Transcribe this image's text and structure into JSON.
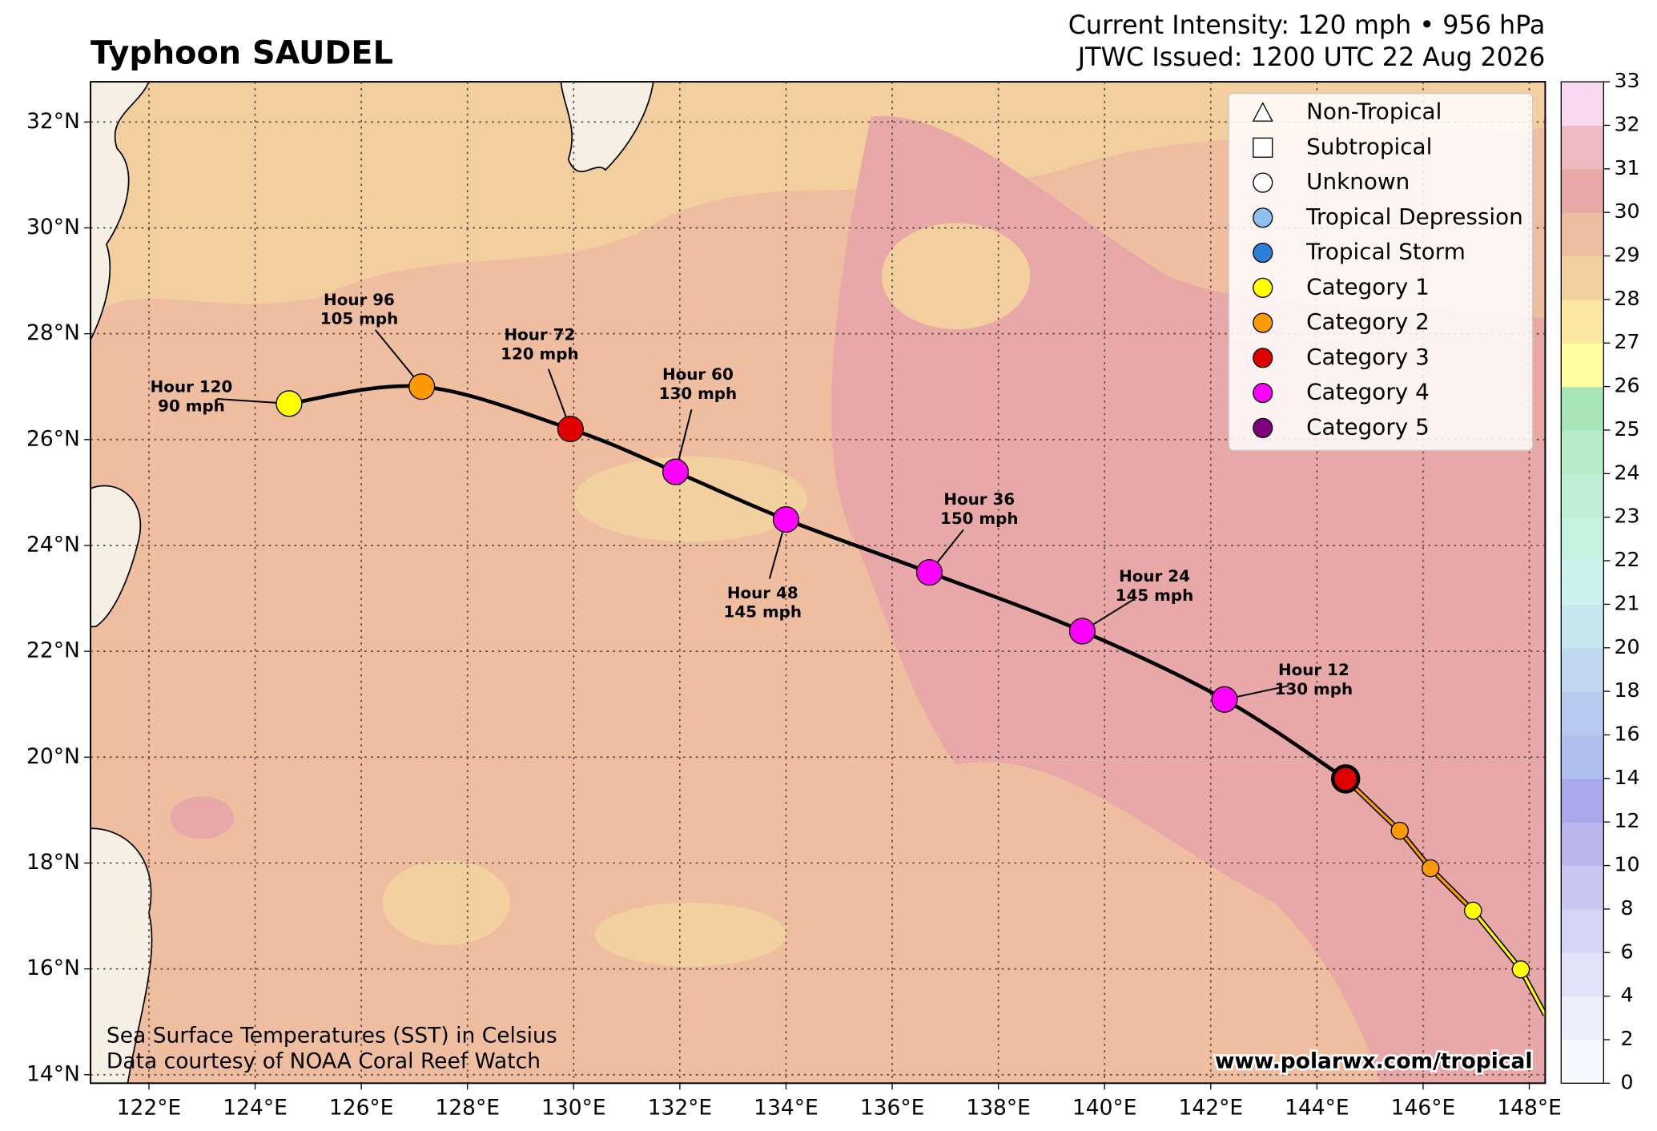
{
  "header": {
    "title": "Typhoon SAUDEL",
    "intensity": "Current Intensity: 120 mph • 956 hPa",
    "issued": "JTWC Issued: 1200 UTC 22 Aug 2026"
  },
  "map": {
    "lon_range": [
      120.9,
      148.3
    ],
    "lat_range": [
      13.84,
      32.76
    ],
    "lon_ticks": [
      {
        "value": 122,
        "label": "122°E"
      },
      {
        "value": 124,
        "label": "124°E"
      },
      {
        "value": 126,
        "label": "126°E"
      },
      {
        "value": 128,
        "label": "128°E"
      },
      {
        "value": 130,
        "label": "130°E"
      },
      {
        "value": 132,
        "label": "132°E"
      },
      {
        "value": 134,
        "label": "134°E"
      },
      {
        "value": 136,
        "label": "136°E"
      },
      {
        "value": 138,
        "label": "138°E"
      },
      {
        "value": 140,
        "label": "140°E"
      },
      {
        "value": 142,
        "label": "142°E"
      },
      {
        "value": 144,
        "label": "144°E"
      },
      {
        "value": 146,
        "label": "146°E"
      },
      {
        "value": 148,
        "label": "148°E"
      }
    ],
    "lat_ticks": [
      {
        "value": 14,
        "label": "14°N"
      },
      {
        "value": 16,
        "label": "16°N"
      },
      {
        "value": 18,
        "label": "18°N"
      },
      {
        "value": 20,
        "label": "20°N"
      },
      {
        "value": 22,
        "label": "22°N"
      },
      {
        "value": 24,
        "label": "24°N"
      },
      {
        "value": 26,
        "label": "26°N"
      },
      {
        "value": 28,
        "label": "28°N"
      },
      {
        "value": 30,
        "label": "30°N"
      },
      {
        "value": 32,
        "label": "32°N"
      }
    ],
    "grid": true
  },
  "legend": [
    {
      "name": "Non-Tropical",
      "shape": "triangle",
      "color": "#ffffff"
    },
    {
      "name": "Subtropical",
      "shape": "square",
      "color": "#ffffff"
    },
    {
      "name": "Unknown",
      "shape": "circle",
      "color": "#ffffff"
    },
    {
      "name": "Tropical Depression",
      "shape": "circle",
      "color": "#8ec0f0"
    },
    {
      "name": "Tropical Storm",
      "shape": "circle",
      "color": "#2a7fd8"
    },
    {
      "name": "Category 1",
      "shape": "circle",
      "color": "#ffff00"
    },
    {
      "name": "Category 2",
      "shape": "circle",
      "color": "#ff9900"
    },
    {
      "name": "Category 3",
      "shape": "circle",
      "color": "#e00000"
    },
    {
      "name": "Category 4",
      "shape": "circle",
      "color": "#ff00ff"
    },
    {
      "name": "Category 5",
      "shape": "circle",
      "color": "#800080"
    }
  ],
  "track": {
    "past": [
      {
        "lon": 148.3,
        "lat": 15.13,
        "category": "Category 1"
      },
      {
        "lon": 147.84,
        "lat": 15.99,
        "category": "Category 1"
      },
      {
        "lon": 146.94,
        "lat": 17.1,
        "category": "Category 1"
      },
      {
        "lon": 146.14,
        "lat": 17.9,
        "category": "Category 2"
      },
      {
        "lon": 145.56,
        "lat": 18.61,
        "category": "Category 2"
      }
    ],
    "current": {
      "lon": 144.54,
      "lat": 19.59,
      "category": "Category 3"
    },
    "forecast": [
      {
        "lon": 142.26,
        "lat": 21.09,
        "category": "Category 4",
        "hour": "Hour 12",
        "wind": "130 mph"
      },
      {
        "lon": 139.58,
        "lat": 22.38,
        "category": "Category 4",
        "hour": "Hour 24",
        "wind": "145 mph"
      },
      {
        "lon": 136.7,
        "lat": 23.49,
        "category": "Category 4",
        "hour": "Hour 36",
        "wind": "150 mph"
      },
      {
        "lon": 134.0,
        "lat": 24.49,
        "category": "Category 4",
        "hour": "Hour 48",
        "wind": "145 mph"
      },
      {
        "lon": 131.92,
        "lat": 25.39,
        "category": "Category 4",
        "hour": "Hour 60",
        "wind": "130 mph"
      },
      {
        "lon": 129.94,
        "lat": 26.2,
        "category": "Category 3",
        "hour": "Hour 72",
        "wind": "120 mph"
      },
      {
        "lon": 127.14,
        "lat": 27.0,
        "category": "Category 2",
        "hour": "Hour 96",
        "wind": "105 mph"
      },
      {
        "lon": 124.64,
        "lat": 26.68,
        "category": "Category 1",
        "hour": "Hour 120",
        "wind": "90 mph"
      }
    ]
  },
  "colorbar": {
    "ticks": [
      0,
      2,
      4,
      6,
      8,
      10,
      12,
      14,
      16,
      18,
      20,
      21,
      22,
      23,
      24,
      25,
      26,
      27,
      28,
      29,
      30,
      31,
      32,
      33
    ],
    "colors": [
      "#f8f8ff",
      "#eeeefc",
      "#e2e2f8",
      "#d5d5f5",
      "#c8c8f2",
      "#b8b8ee",
      "#a8a8ea",
      "#b0bef0",
      "#b8caf0",
      "#c0d8ee",
      "#c8e6ee",
      "#ccf2ee",
      "#c6f2e0",
      "#bef0d6",
      "#b6ecc8",
      "#a8e6b8",
      "#ffffa0",
      "#fae8a0",
      "#f3d0a0",
      "#efbea0",
      "#e8a8a8",
      "#f0b8c0",
      "#f8d8f0"
    ]
  },
  "footer": {
    "sst_note": "Sea Surface Temperatures (SST) in Celsius",
    "credit": "Data courtesy of NOAA Coral Reef Watch",
    "site": "www.polarwx.com/tropical"
  }
}
